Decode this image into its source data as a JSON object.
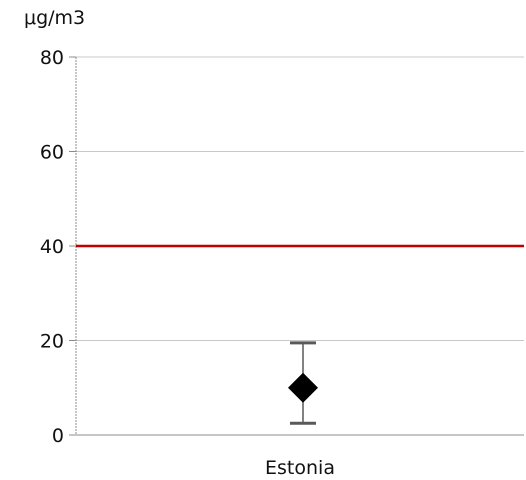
{
  "chart_data": {
    "type": "scatter",
    "title": "",
    "xlabel": "",
    "ylabel": "μg/m3",
    "ylim": [
      0,
      80
    ],
    "yticks": [
      0,
      20,
      40,
      60,
      80
    ],
    "categories": [
      "Estonia"
    ],
    "series": [
      {
        "marker": "diamond",
        "color": "#000000",
        "values": [
          10
        ],
        "error_low": [
          2.5
        ],
        "error_high": [
          19.5
        ]
      }
    ],
    "reference_line": {
      "value": 40,
      "color": "#c00000"
    },
    "grid": true,
    "legend": "none",
    "colors": {
      "grid": "#c8c8c8",
      "axis": "#8c8c8c",
      "error_bar": "#595959"
    }
  }
}
